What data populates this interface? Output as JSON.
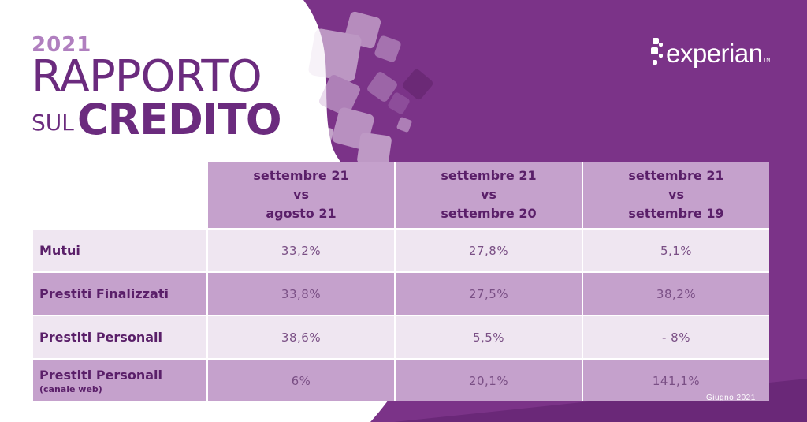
{
  "brand": {
    "year": "2021",
    "line1": "RAPPORTO",
    "line2_prefix": "SUL",
    "line2": "CREDITO"
  },
  "logo": {
    "text": "experian",
    "tm": "TM"
  },
  "table": {
    "headers": [
      {
        "l1": "settembre 21",
        "l2": "vs",
        "l3": "agosto  21"
      },
      {
        "l1": "settembre 21",
        "l2": "vs",
        "l3": "settembre 20"
      },
      {
        "l1": "settembre 21",
        "l2": "vs",
        "l3": "settembre 19"
      }
    ],
    "rows": [
      {
        "label": "Mutui",
        "sub": "",
        "values": [
          "33,2%",
          "27,8%",
          "5,1%"
        ]
      },
      {
        "label": "Prestiti Finalizzati",
        "sub": "",
        "values": [
          "33,8%",
          "27,5%",
          "38,2%"
        ]
      },
      {
        "label": "Prestiti Personali",
        "sub": "",
        "values": [
          "38,6%",
          "5,5%",
          "- 8%"
        ]
      },
      {
        "label": "Prestiti Personali",
        "sub": "(canale web)",
        "values": [
          "6%",
          "20,1%",
          "141,1%"
        ]
      }
    ]
  },
  "footer": {
    "note": "Giugno 2021"
  },
  "colors": {
    "purple": "#7b3388",
    "header_cell": "#c5a1cc",
    "light_cell": "#efe6f1",
    "text": "#5a1f69"
  }
}
